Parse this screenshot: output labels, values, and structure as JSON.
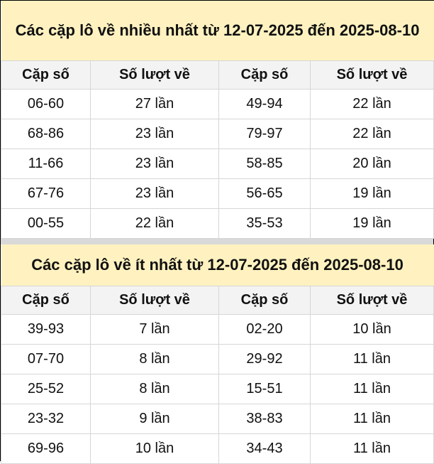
{
  "most": {
    "title": "Các cặp lô về nhiều nhất từ 12-07-2025 đến 2025-08-10",
    "headers": [
      "Cặp số",
      "Số lượt về",
      "Cặp số",
      "Số lượt về"
    ],
    "rows": [
      [
        "06-60",
        "27 lần",
        "49-94",
        "22 lần"
      ],
      [
        "68-86",
        "23 lần",
        "79-97",
        "22 lần"
      ],
      [
        "11-66",
        "23 lần",
        "58-85",
        "20 lần"
      ],
      [
        "67-76",
        "23 lần",
        "56-65",
        "19 lần"
      ],
      [
        "00-55",
        "22 lần",
        "35-53",
        "19 lần"
      ]
    ]
  },
  "least": {
    "title": "Các cặp lô về ít nhất từ 12-07-2025 đến 2025-08-10",
    "headers": [
      "Cặp số",
      "Số lượt về",
      "Cặp số",
      "Số lượt về"
    ],
    "rows": [
      [
        "39-93",
        "7 lần",
        "02-20",
        "10 lần"
      ],
      [
        "07-70",
        "8 lần",
        "29-92",
        "11 lần"
      ],
      [
        "25-52",
        "8 lần",
        "15-51",
        "11 lần"
      ],
      [
        "23-32",
        "9 lần",
        "38-83",
        "11 lần"
      ],
      [
        "69-96",
        "10 lần",
        "34-43",
        "11 lần"
      ]
    ]
  },
  "colors": {
    "title_bg": "#fff2c0",
    "header_bg": "#f3f3f3",
    "separator": "#d9d9d9"
  }
}
